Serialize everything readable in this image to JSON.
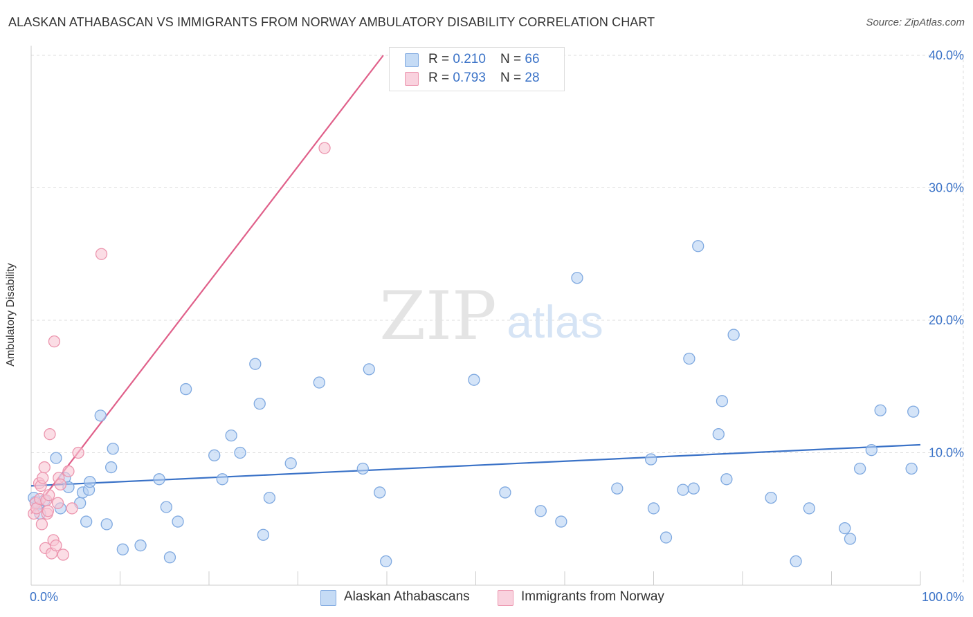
{
  "title": "ALASKAN ATHABASCAN VS IMMIGRANTS FROM NORWAY AMBULATORY DISABILITY CORRELATION CHART",
  "source": "Source: ZipAtlas.com",
  "watermark": {
    "zip": "ZIP",
    "atlas": "atlas"
  },
  "legend_top": [
    {
      "r_label": "R = ",
      "r_value": "0.210",
      "n_label": "N = ",
      "n_value": "66"
    },
    {
      "r_label": "R = ",
      "r_value": "0.793",
      "n_label": "N = ",
      "n_value": "28"
    }
  ],
  "colors": {
    "blue_fill": "#b8d2f3",
    "blue_stroke": "#7fa9e0",
    "blue_line": "#3a72c7",
    "pink_fill": "#f8c6d4",
    "pink_stroke": "#ec95ae",
    "pink_line": "#e0608a",
    "tick_label": "#3a72c7",
    "grid": "#dddddd"
  },
  "chart_data": {
    "type": "scatter",
    "title": "ALASKAN ATHABASCAN VS IMMIGRANTS FROM NORWAY AMBULATORY DISABILITY CORRELATION CHART",
    "xlabel": "",
    "ylabel": "Ambulatory Disability",
    "xlim": [
      0,
      100
    ],
    "ylim": [
      0,
      40
    ],
    "x_tick_labels": [
      "0.0%",
      "100.0%"
    ],
    "y_ticks": [
      10,
      20,
      30,
      40
    ],
    "y_tick_labels": [
      "10.0%",
      "20.0%",
      "30.0%",
      "40.0%"
    ],
    "grid": true,
    "legend_position": "top-center",
    "series": [
      {
        "name": "Alaskan Athabascans",
        "color": "#b8d2f3",
        "r": 0.21,
        "n": 66,
        "trend": {
          "x0": 0,
          "y0": 7.5,
          "x1": 100,
          "y1": 10.6
        },
        "points": [
          [
            0.5,
            6.3
          ],
          [
            0.8,
            6.1
          ],
          [
            1.5,
            6.4
          ],
          [
            2.8,
            9.6
          ],
          [
            3.3,
            5.8
          ],
          [
            3.8,
            8.1
          ],
          [
            4.2,
            7.4
          ],
          [
            5.5,
            6.2
          ],
          [
            5.8,
            7.0
          ],
          [
            6.2,
            4.8
          ],
          [
            6.5,
            7.2
          ],
          [
            6.6,
            7.8
          ],
          [
            7.8,
            12.8
          ],
          [
            8.5,
            4.6
          ],
          [
            9.0,
            8.9
          ],
          [
            9.2,
            10.3
          ],
          [
            10.3,
            2.7
          ],
          [
            12.3,
            3.0
          ],
          [
            14.4,
            8.0
          ],
          [
            15.2,
            5.9
          ],
          [
            15.6,
            2.1
          ],
          [
            16.5,
            4.8
          ],
          [
            17.4,
            14.8
          ],
          [
            20.6,
            9.8
          ],
          [
            21.5,
            8.0
          ],
          [
            22.5,
            11.3
          ],
          [
            23.5,
            10.0
          ],
          [
            25.2,
            16.7
          ],
          [
            25.7,
            13.7
          ],
          [
            26.1,
            3.8
          ],
          [
            26.8,
            6.6
          ],
          [
            29.2,
            9.2
          ],
          [
            32.4,
            15.3
          ],
          [
            37.3,
            8.8
          ],
          [
            38.0,
            16.3
          ],
          [
            39.2,
            7.0
          ],
          [
            39.9,
            1.8
          ],
          [
            49.8,
            15.5
          ],
          [
            53.3,
            7.0
          ],
          [
            57.3,
            5.6
          ],
          [
            59.6,
            4.8
          ],
          [
            61.4,
            23.2
          ],
          [
            65.9,
            7.3
          ],
          [
            69.7,
            9.5
          ],
          [
            70.0,
            5.8
          ],
          [
            71.4,
            3.6
          ],
          [
            73.3,
            7.2
          ],
          [
            74.5,
            7.3
          ],
          [
            74.0,
            17.1
          ],
          [
            75.0,
            25.6
          ],
          [
            77.3,
            11.4
          ],
          [
            77.7,
            13.9
          ],
          [
            78.2,
            8.0
          ],
          [
            79.0,
            18.9
          ],
          [
            83.2,
            6.6
          ],
          [
            86.0,
            1.8
          ],
          [
            87.5,
            5.8
          ],
          [
            91.5,
            4.3
          ],
          [
            92.1,
            3.5
          ],
          [
            93.2,
            8.8
          ],
          [
            94.5,
            10.2
          ],
          [
            95.5,
            13.2
          ],
          [
            99.0,
            8.8
          ],
          [
            99.2,
            13.1
          ],
          [
            0.3,
            6.6
          ],
          [
            1.0,
            5.4
          ]
        ]
      },
      {
        "name": "Immigrants from Norway",
        "color": "#f8c6d4",
        "r": 0.793,
        "n": 28,
        "trend": {
          "x0": 0,
          "y0": 5.4,
          "x1": 39.6,
          "y1": 40.0
        },
        "points": [
          [
            0.3,
            5.4
          ],
          [
            0.5,
            6.2
          ],
          [
            0.6,
            5.8
          ],
          [
            0.9,
            7.7
          ],
          [
            1.0,
            6.5
          ],
          [
            1.1,
            7.5
          ],
          [
            1.2,
            4.6
          ],
          [
            1.3,
            8.1
          ],
          [
            1.5,
            8.9
          ],
          [
            1.6,
            2.8
          ],
          [
            1.7,
            6.4
          ],
          [
            1.8,
            5.4
          ],
          [
            1.9,
            5.6
          ],
          [
            2.0,
            6.8
          ],
          [
            2.1,
            11.4
          ],
          [
            2.3,
            2.4
          ],
          [
            2.5,
            3.4
          ],
          [
            2.6,
            18.4
          ],
          [
            2.8,
            3.0
          ],
          [
            3.0,
            6.2
          ],
          [
            3.1,
            8.1
          ],
          [
            3.3,
            7.6
          ],
          [
            3.6,
            2.3
          ],
          [
            4.2,
            8.6
          ],
          [
            4.6,
            5.8
          ],
          [
            5.3,
            10.0
          ],
          [
            7.9,
            25.0
          ],
          [
            33.0,
            33.0
          ]
        ]
      }
    ]
  }
}
